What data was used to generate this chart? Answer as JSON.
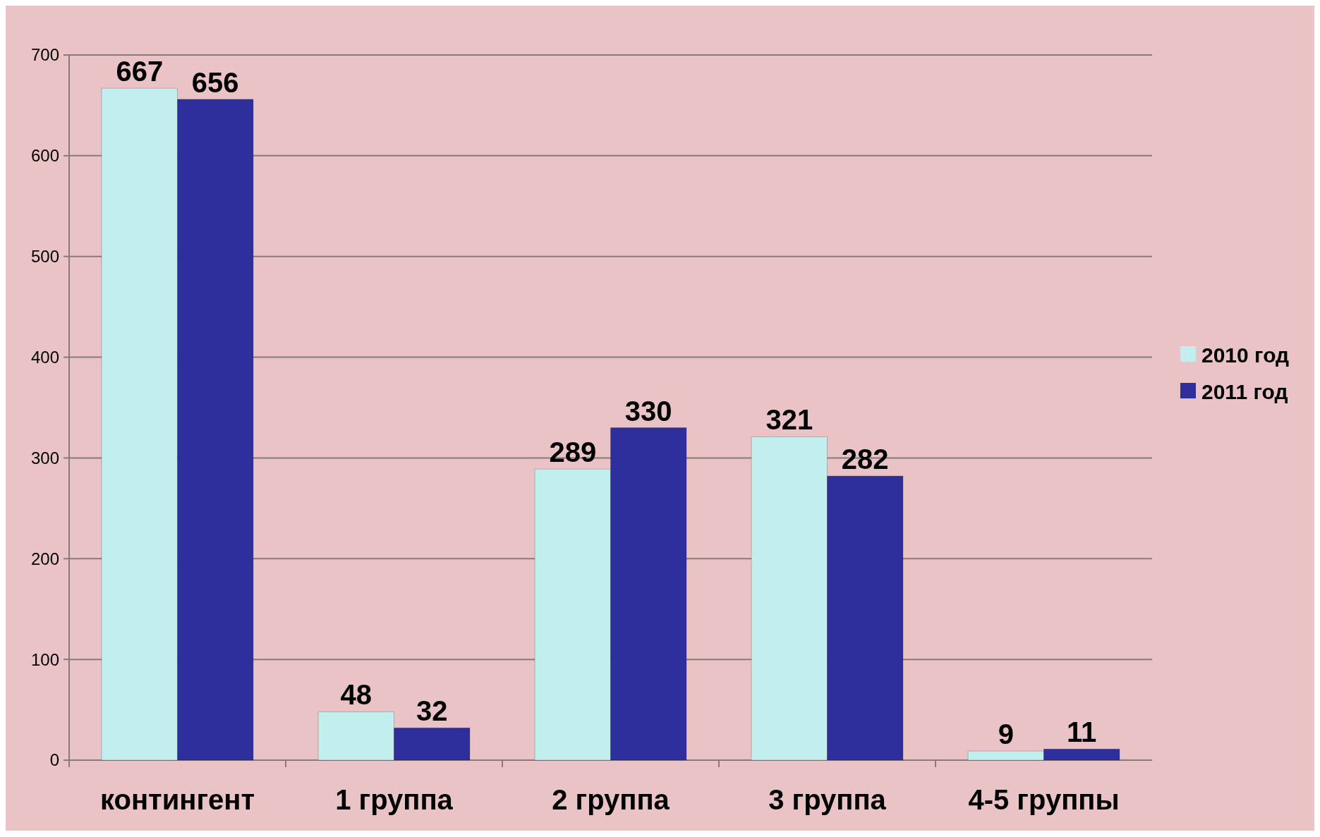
{
  "chart_data": {
    "type": "bar",
    "categories": [
      "контингент",
      "1 группа",
      "2 группа",
      "3 группа",
      "4-5 группы"
    ],
    "series": [
      {
        "name": "2010 год",
        "color": "#c2eeee",
        "values": [
          667,
          48,
          289,
          321,
          9
        ]
      },
      {
        "name": "2011 год",
        "color": "#2e2e9c",
        "values": [
          656,
          32,
          330,
          282,
          11
        ]
      }
    ],
    "ylim": [
      0,
      700
    ],
    "yticks": [
      0,
      100,
      200,
      300,
      400,
      500,
      600,
      700
    ],
    "grid": "y",
    "legend": "right",
    "data_labels": true
  }
}
